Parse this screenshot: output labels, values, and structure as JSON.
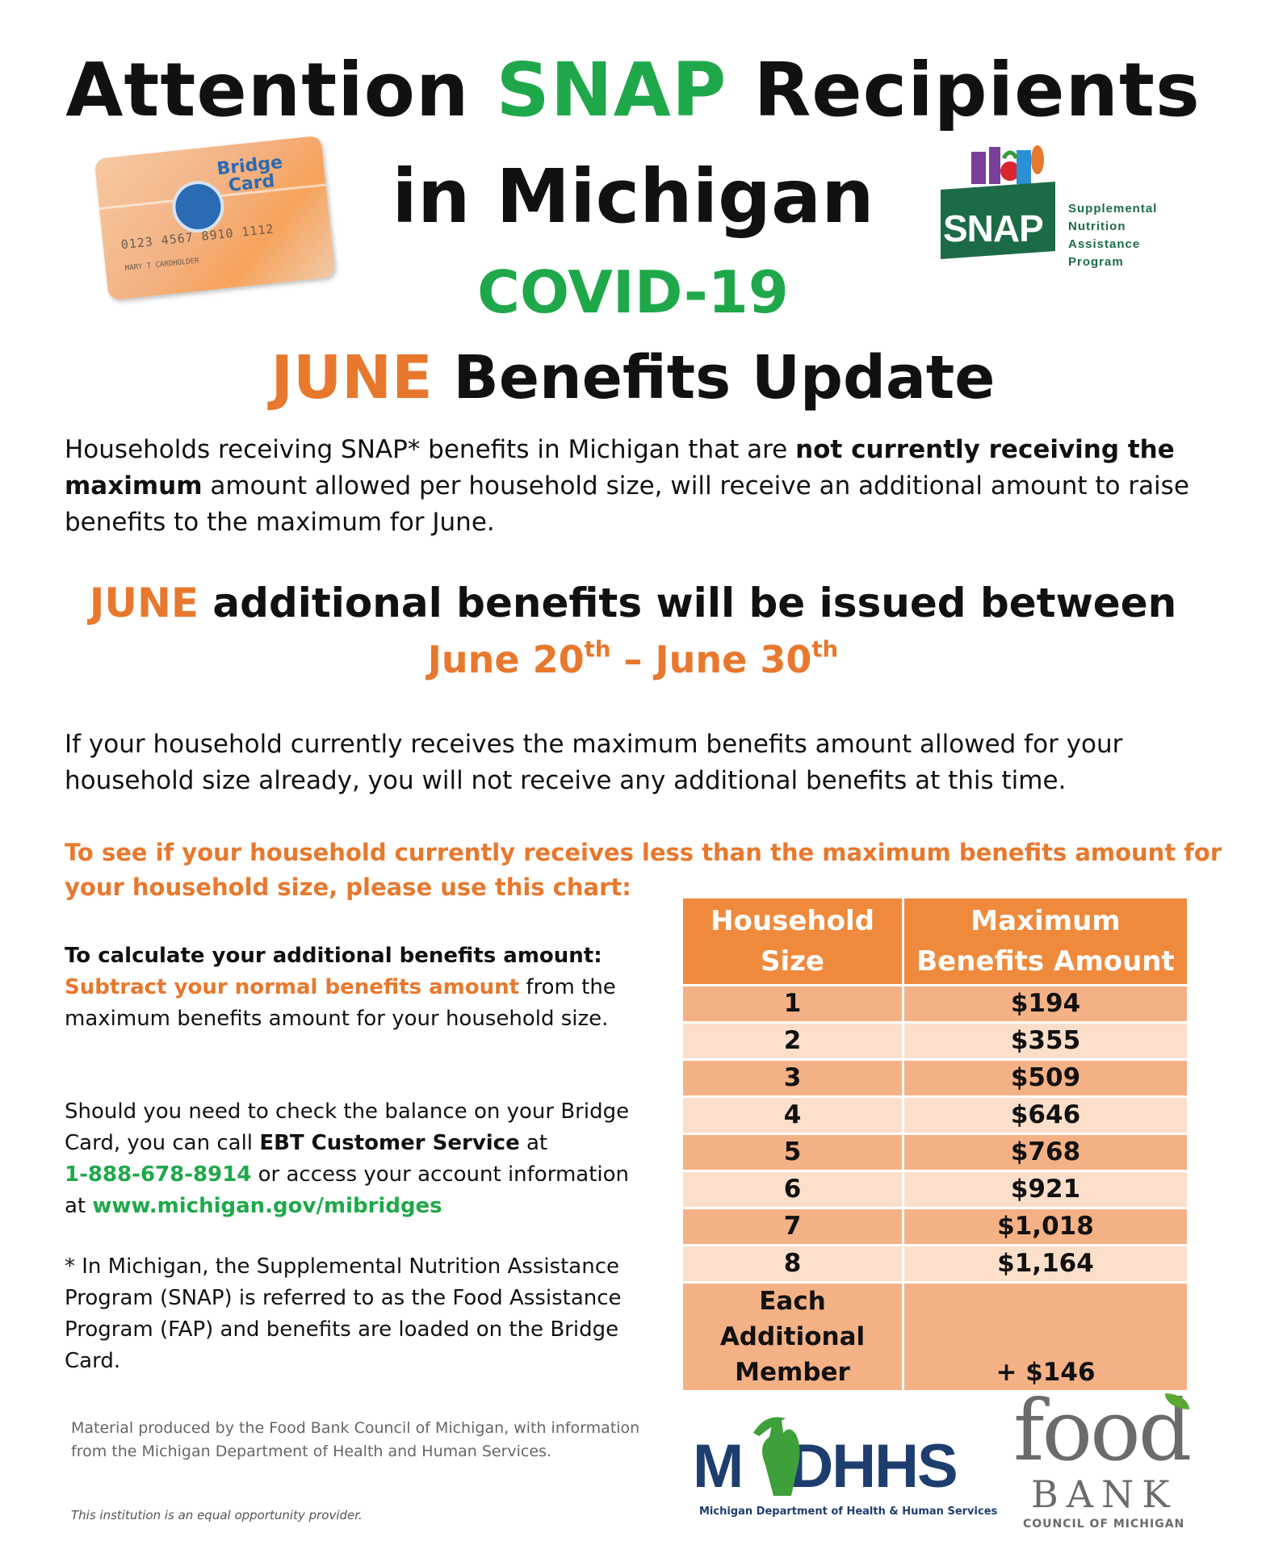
{
  "title": {
    "word1": "Attention",
    "word2": "SNAP",
    "word3": "Recipients",
    "line2": "in Michigan",
    "covid": "COVID-19",
    "month": "JUNE",
    "update": "Benefits Update"
  },
  "bridge_card": {
    "brand_line1": "Bridge",
    "brand_line2": "Card",
    "number": "0123 4567 8910 1112",
    "holder": "MARY T CARDHOLDER"
  },
  "snap_logo": {
    "word": "SNAP",
    "line1": "Supplemental",
    "line2": "Nutrition",
    "line3": "Assistance",
    "line4": "Program"
  },
  "intro": {
    "part1": "Households receiving SNAP* benefits in Michigan that are ",
    "bold": "not currently receiving the maximum",
    "part2": " amount allowed per household size, will receive an additional amount to raise benefits to the maximum for June."
  },
  "issued": {
    "month": "JUNE",
    "text": " additional benefits will be issued between",
    "start": "June 20",
    "start_sup": "th",
    "dash": " – ",
    "end": "June 30",
    "end_sup": "th"
  },
  "max_note": "If your household currently receives the maximum benefits amount allowed for your household size already, you will not receive any additional benefits at this time.",
  "chart_intro": "To see if your household currently receives less than the maximum benefits amount for your household size, please use this chart:",
  "calc": {
    "heading": "To calculate your additional benefits amount:",
    "highlight": "Subtract your normal benefits amount",
    "rest": " from the maximum benefits amount for your household size."
  },
  "balance": {
    "part1": "Should you need to check the balance on your Bridge Card, you can call ",
    "bold": "EBT Customer Service",
    "part2": " at ",
    "phone": "1-888-678-8914",
    "part3": " or access your account information at ",
    "url": "www.michigan.gov/mibridges"
  },
  "footnote": "* In Michigan, the Supplemental Nutrition Assistance Program (SNAP) is referred to as the Food Assistance Program (FAP) and benefits are loaded on the Bridge Card.",
  "material": "Material produced by the Food Bank Council of Michigan, with information from the Michigan Department of Health and Human Services.",
  "equal_opportunity": "This institution is an equal opportunity provider.",
  "table": {
    "header_size_line1": "Household",
    "header_size_line2": "Size",
    "header_amount_line1": "Maximum",
    "header_amount_line2": "Benefits Amount",
    "rows": [
      {
        "size": "1",
        "amount": "$194"
      },
      {
        "size": "2",
        "amount": "$355"
      },
      {
        "size": "3",
        "amount": "$509"
      },
      {
        "size": "4",
        "amount": "$646"
      },
      {
        "size": "5",
        "amount": "$768"
      },
      {
        "size": "6",
        "amount": "$921"
      },
      {
        "size": "7",
        "amount": "$1,018"
      },
      {
        "size": "8",
        "amount": "$1,164"
      }
    ],
    "additional_line1": "Each Additional",
    "additional_line2": "Member",
    "additional_amount": "+ $146"
  },
  "mdhhs_logo": {
    "letters_left": "M",
    "letters_right": "DHHS",
    "caption": "Michigan Department of Health & Human Services"
  },
  "foodbank_logo": {
    "food": "food",
    "bank": "BANK",
    "council": "COUNCIL OF MICHIGAN"
  },
  "colors": {
    "green": "#1fa84a",
    "orange": "#e8782d",
    "table_header": "#ef8a3d",
    "row_dark": "#f4b185",
    "row_light": "#fbdfca"
  }
}
